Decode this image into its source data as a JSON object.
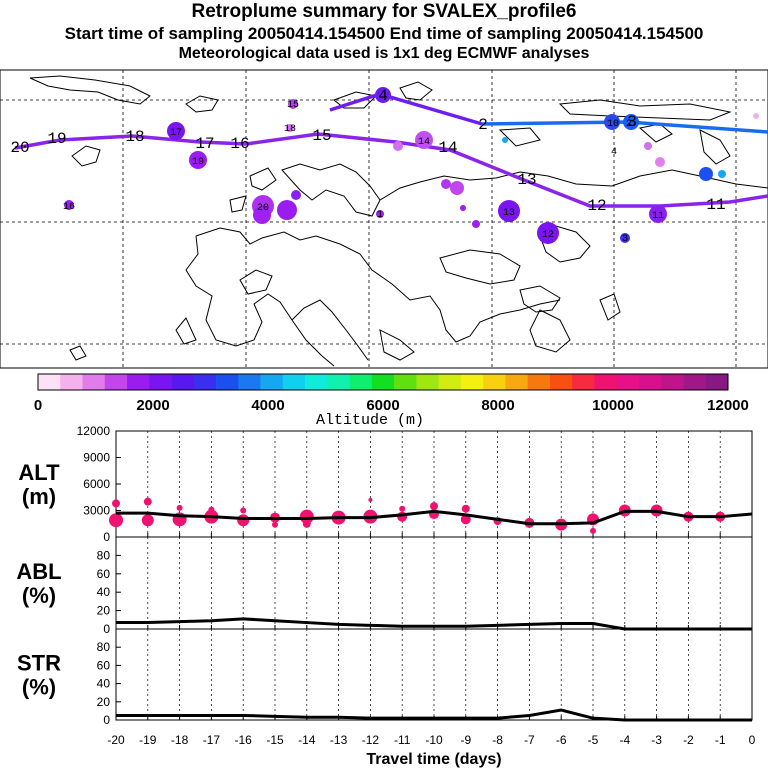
{
  "titles": {
    "line1": "Retroplume summary for SVALEX_profile6",
    "line2": "Start time of sampling 20050414.154500     End time of sampling 20050414.154500",
    "line3": "Meteorological data used is 1x1 deg ECMWF analyses"
  },
  "chart_data": [
    {
      "type": "map",
      "title": "Retroplume trajectory map",
      "track_labels": [
        "20",
        "19",
        "18",
        "17",
        "16",
        "15",
        "14",
        "13",
        "12",
        "11",
        "2",
        "3",
        "4"
      ],
      "cluster_labels": [
        "16",
        "17",
        "18",
        "19",
        "20",
        "10",
        "11",
        "12",
        "13",
        "14",
        "15",
        "1",
        "2",
        "3",
        "4"
      ]
    },
    {
      "type": "colorbar",
      "label": "Altitude (m)",
      "ticks": [
        "0",
        "2000",
        "4000",
        "6000",
        "8000",
        "10000",
        "12000"
      ],
      "range": [
        0,
        12000
      ],
      "colors": [
        "#fde1f7",
        "#f5b0ee",
        "#e07cec",
        "#c545ec",
        "#9b1cf0",
        "#7a15f2",
        "#5a18f0",
        "#3a2ef0",
        "#1a50f0",
        "#1a78f0",
        "#14a8f2",
        "#10d0f0",
        "#10ecdc",
        "#10f0b0",
        "#10ee70",
        "#10e020",
        "#60e010",
        "#a0e610",
        "#d0ec10",
        "#f4f010",
        "#f8d010",
        "#f8a810",
        "#f87810",
        "#f85010",
        "#f82a40",
        "#f01270",
        "#e81088",
        "#d8108c",
        "#c0148c",
        "#a01888",
        "#881884"
      ]
    },
    {
      "type": "scatter",
      "panel": "ALT",
      "ylabel_line1": "ALT",
      "ylabel_line2": "(m)",
      "ylim": [
        0,
        12000
      ],
      "yticks": [
        "0",
        "3000",
        "6000",
        "9000",
        "12000"
      ],
      "x": [
        -20,
        -19,
        -18,
        -17,
        -16,
        -15,
        -14,
        -13,
        -12,
        -11,
        -10,
        -9,
        -8,
        -7,
        -6,
        -5,
        -4,
        -3,
        -2,
        -1,
        0
      ],
      "mean_line": [
        2700,
        2700,
        2400,
        2300,
        2100,
        2100,
        2100,
        2200,
        2200,
        2500,
        2900,
        2500,
        2000,
        1500,
        1500,
        1600,
        2900,
        2900,
        2300,
        2300,
        2600
      ],
      "clusters": [
        {
          "x": -20,
          "y": 3800,
          "size": 4
        },
        {
          "x": -20,
          "y": 1900,
          "size": 7
        },
        {
          "x": -19,
          "y": 4000,
          "size": 4
        },
        {
          "x": -19,
          "y": 1900,
          "size": 6
        },
        {
          "x": -18,
          "y": 3300,
          "size": 3
        },
        {
          "x": -18,
          "y": 2000,
          "size": 7
        },
        {
          "x": -17,
          "y": 2300,
          "size": 7
        },
        {
          "x": -17,
          "y": 3100,
          "size": 3
        },
        {
          "x": -16,
          "y": 3000,
          "size": 3
        },
        {
          "x": -16,
          "y": 1900,
          "size": 6
        },
        {
          "x": -15,
          "y": 2200,
          "size": 5
        },
        {
          "x": -15,
          "y": 1400,
          "size": 3
        },
        {
          "x": -14,
          "y": 2300,
          "size": 7
        },
        {
          "x": -14,
          "y": 1500,
          "size": 4
        },
        {
          "x": -13,
          "y": 2200,
          "size": 7
        },
        {
          "x": -12,
          "y": 2300,
          "size": 7
        },
        {
          "x": -12,
          "y": 4200,
          "size": 2
        },
        {
          "x": -11,
          "y": 3200,
          "size": 3
        },
        {
          "x": -11,
          "y": 2300,
          "size": 5
        },
        {
          "x": -10,
          "y": 3500,
          "size": 4
        },
        {
          "x": -10,
          "y": 2600,
          "size": 5
        },
        {
          "x": -9,
          "y": 3200,
          "size": 4
        },
        {
          "x": -9,
          "y": 2000,
          "size": 5
        },
        {
          "x": -8,
          "y": 1800,
          "size": 4
        },
        {
          "x": -7,
          "y": 1600,
          "size": 5
        },
        {
          "x": -6,
          "y": 1400,
          "size": 6
        },
        {
          "x": -5,
          "y": 2000,
          "size": 6
        },
        {
          "x": -5,
          "y": 700,
          "size": 3
        },
        {
          "x": -4,
          "y": 3000,
          "size": 6
        },
        {
          "x": -3,
          "y": 3000,
          "size": 6
        },
        {
          "x": -2,
          "y": 2300,
          "size": 5
        },
        {
          "x": -1,
          "y": 2300,
          "size": 5
        }
      ]
    },
    {
      "type": "line",
      "panel": "ABL",
      "ylabel_line1": "ABL",
      "ylabel_line2": "(%)",
      "ylim": [
        0,
        100
      ],
      "yticks": [
        "0",
        "20",
        "40",
        "60",
        "80"
      ],
      "x": [
        -20,
        -19,
        -18,
        -17,
        -16,
        -15,
        -14,
        -13,
        -12,
        -11,
        -10,
        -9,
        -8,
        -7,
        -6,
        -5,
        -4,
        -3,
        -2,
        -1,
        0
      ],
      "values": [
        7,
        7,
        8,
        9,
        11,
        9,
        7,
        5,
        4,
        3,
        3,
        3,
        4,
        5,
        6,
        6,
        0,
        0,
        0,
        0,
        0
      ]
    },
    {
      "type": "line",
      "panel": "STR",
      "ylabel_line1": "STR",
      "ylabel_line2": "(%)",
      "ylim": [
        0,
        100
      ],
      "yticks": [
        "0",
        "20",
        "40",
        "60",
        "80"
      ],
      "x": [
        -20,
        -19,
        -18,
        -17,
        -16,
        -15,
        -14,
        -13,
        -12,
        -11,
        -10,
        -9,
        -8,
        -7,
        -6,
        -5,
        -4,
        -3,
        -2,
        -1,
        0
      ],
      "values": [
        5,
        5,
        5,
        5,
        5,
        4,
        3,
        3,
        2,
        2,
        2,
        2,
        2,
        5,
        11,
        2,
        0,
        0,
        0,
        0,
        0
      ],
      "xlabel": "Travel time (days)",
      "xticks": [
        "-20",
        "-19",
        "-18",
        "-17",
        "-16",
        "-15",
        "-14",
        "-13",
        "-12",
        "-11",
        "-10",
        "-9",
        "-8",
        "-7",
        "-6",
        "-5",
        "-4",
        "-3",
        "-2",
        "-1",
        "0"
      ]
    }
  ]
}
